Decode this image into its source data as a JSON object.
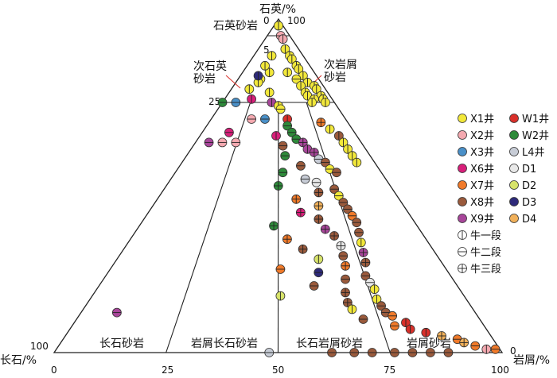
{
  "axes": {
    "top": "石英/%",
    "left": "长石/%",
    "right": "岩屑/%"
  },
  "ticks": {
    "apex_top_0": "0",
    "apex_top_100": "100",
    "quartz_5": "5",
    "quartz_25": "25",
    "feldspar_100": "100",
    "lithic_0": "0",
    "base": [
      "0",
      "25",
      "50",
      "75",
      "100"
    ]
  },
  "fields": {
    "quartz_sandstone": "石英砂岩",
    "sub_arkose": "次石英\n砂岩",
    "sub_litharenite": "次岩屑\n砂岩",
    "arkose": "长石砂岩",
    "lithic_arkose": "岩屑长石砂岩",
    "feldspathic_litharenite": "长石岩屑砂岩",
    "litharenite": "岩屑砂岩"
  },
  "legend": {
    "wells": [
      {
        "label": "X1井",
        "color": "#f2e83a"
      },
      {
        "label": "X2井",
        "color": "#f4a9b0"
      },
      {
        "label": "X3井",
        "color": "#4a90c8"
      },
      {
        "label": "X6井",
        "color": "#d81f7a"
      },
      {
        "label": "X7井",
        "color": "#f07a2a"
      },
      {
        "label": "X8井",
        "color": "#9a5a3c"
      },
      {
        "label": "X9井",
        "color": "#a8469a"
      },
      {
        "label": "W1井",
        "color": "#d9302a"
      },
      {
        "label": "W2井",
        "color": "#2e8a3a"
      },
      {
        "label": "L4井",
        "color": "#c7ccd6"
      },
      {
        "label": "D1",
        "color": "#e8e8e8"
      },
      {
        "label": "D2",
        "color": "#d7e36a"
      },
      {
        "label": "D3",
        "color": "#2e2a7a"
      },
      {
        "label": "D4",
        "color": "#f0b05a"
      }
    ],
    "members": [
      {
        "label": "牛一段",
        "marker": "vertical"
      },
      {
        "label": "牛二段",
        "marker": "horizontal"
      },
      {
        "label": "牛三段",
        "marker": "cross"
      }
    ]
  },
  "colors": {
    "X1": "#f2e83a",
    "X2": "#f4a9b0",
    "X3": "#4a90c8",
    "X6": "#d81f7a",
    "X7": "#f07a2a",
    "X8": "#9a5a3c",
    "X9": "#a8469a",
    "W1": "#d9302a",
    "W2": "#2e8a3a",
    "L4": "#c7ccd6",
    "D1": "#e8e8e8",
    "D2": "#d7e36a",
    "D3": "#2e2a7a",
    "D4": "#f0b05a"
  },
  "chart_data": {
    "type": "scatter",
    "plot": "ternary",
    "components": {
      "top": "石英",
      "left": "长石",
      "right": "岩屑"
    },
    "boundaries": {
      "quartz": [
        75,
        95
      ],
      "lithic_to_feldspar_ratio": [
        0.333,
        1,
        3
      ]
    },
    "points": [
      {
        "q": 98,
        "l": 1,
        "well": "X1",
        "m": "v"
      },
      {
        "q": 98,
        "l": 1,
        "well": "X1",
        "m": "v"
      },
      {
        "q": 95,
        "l": 3,
        "well": "X2",
        "m": "h"
      },
      {
        "q": 94,
        "l": 4,
        "well": "X2",
        "m": "v"
      },
      {
        "q": 91,
        "l": 6,
        "well": "X1",
        "m": "v"
      },
      {
        "q": 89,
        "l": 8,
        "well": "X1",
        "m": "v"
      },
      {
        "q": 88,
        "l": 9,
        "well": "X1",
        "m": "v"
      },
      {
        "q": 86,
        "l": 11,
        "well": "X1",
        "m": "v"
      },
      {
        "q": 85,
        "l": 12,
        "well": "X1",
        "m": "v"
      },
      {
        "q": 84,
        "l": 10,
        "well": "X1",
        "m": "v"
      },
      {
        "q": 83,
        "l": 14,
        "well": "X1",
        "m": "v"
      },
      {
        "q": 82,
        "l": 13,
        "well": "X1",
        "m": "h"
      },
      {
        "q": 81,
        "l": 16,
        "well": "X1",
        "m": "v"
      },
      {
        "q": 80,
        "l": 15,
        "well": "X1",
        "m": "v"
      },
      {
        "q": 80,
        "l": 18,
        "well": "X1",
        "m": "v"
      },
      {
        "q": 79,
        "l": 19,
        "well": "X1",
        "m": "v"
      },
      {
        "q": 78,
        "l": 17,
        "well": "X1",
        "m": "v"
      },
      {
        "q": 77,
        "l": 21,
        "well": "X1",
        "m": "v"
      },
      {
        "q": 77,
        "l": 18,
        "well": "X1",
        "m": "v"
      },
      {
        "q": 76,
        "l": 22,
        "well": "X1",
        "m": "v"
      },
      {
        "q": 76,
        "l": 20,
        "well": "X1",
        "m": "v"
      },
      {
        "q": 75,
        "l": 23,
        "well": "X1",
        "m": "v"
      },
      {
        "q": 75,
        "l": 20,
        "well": "X1",
        "m": "v"
      },
      {
        "q": 82,
        "l": 5,
        "well": "X1",
        "m": "v"
      },
      {
        "q": 84,
        "l": 6,
        "well": "X1",
        "m": "v"
      },
      {
        "q": 79,
        "l": 4,
        "well": "X1",
        "m": "v"
      },
      {
        "q": 78,
        "l": 9,
        "well": "X1",
        "m": "v"
      },
      {
        "q": 86,
        "l": 4,
        "well": "X1",
        "m": "v"
      },
      {
        "q": 89,
        "l": 4,
        "well": "X1",
        "m": "v"
      },
      {
        "q": 81,
        "l": 5,
        "well": "X1",
        "m": "v"
      },
      {
        "q": 83,
        "l": 4,
        "well": "D3",
        "m": "v"
      },
      {
        "q": 75,
        "l": 0,
        "well": "W2",
        "m": "h"
      },
      {
        "q": 75,
        "l": 3,
        "well": "X3",
        "m": "h"
      },
      {
        "q": 76,
        "l": 6,
        "well": "X6",
        "m": "v"
      },
      {
        "q": 75,
        "l": 11,
        "well": "X9",
        "m": "v"
      },
      {
        "q": 74,
        "l": 13,
        "well": "X1",
        "m": "v"
      },
      {
        "q": 73,
        "l": 14,
        "well": "X1",
        "m": "h"
      },
      {
        "q": 70,
        "l": 17,
        "well": "W1",
        "m": "v"
      },
      {
        "q": 70,
        "l": 12,
        "well": "X3",
        "m": "h"
      },
      {
        "q": 70,
        "l": 9,
        "well": "X2",
        "m": "h"
      },
      {
        "q": 66,
        "l": 6,
        "well": "X6",
        "m": "h"
      },
      {
        "q": 63,
        "l": 3,
        "well": "X9",
        "m": "h"
      },
      {
        "q": 63,
        "l": 6,
        "well": "X2",
        "m": "h"
      },
      {
        "q": 63,
        "l": 9,
        "well": "X2",
        "m": "h"
      },
      {
        "q": 69,
        "l": 25,
        "well": "X7",
        "m": "c"
      },
      {
        "q": 67,
        "l": 28,
        "well": "X1",
        "m": "v"
      },
      {
        "q": 65,
        "l": 31,
        "well": "X8",
        "m": "v"
      },
      {
        "q": 63,
        "l": 33,
        "well": "X1",
        "m": "v"
      },
      {
        "q": 61,
        "l": 35,
        "well": "X1",
        "m": "v"
      },
      {
        "q": 59,
        "l": 37,
        "well": "X1",
        "m": "v"
      },
      {
        "q": 57,
        "l": 39,
        "well": "X1",
        "m": "v"
      },
      {
        "q": 68,
        "l": 18,
        "well": "W2",
        "m": "h"
      },
      {
        "q": 66,
        "l": 20,
        "well": "W2",
        "m": "h"
      },
      {
        "q": 65,
        "l": 17,
        "well": "X6",
        "m": "v"
      },
      {
        "q": 64,
        "l": 22,
        "well": "W2",
        "m": "h"
      },
      {
        "q": 63,
        "l": 24,
        "well": "X9",
        "m": "c"
      },
      {
        "q": 62,
        "l": 20,
        "well": "X8",
        "m": "h"
      },
      {
        "q": 61,
        "l": 26,
        "well": "X9",
        "m": "v"
      },
      {
        "q": 60,
        "l": 28,
        "well": "X9",
        "m": "c"
      },
      {
        "q": 59,
        "l": 22,
        "well": "W2",
        "m": "h"
      },
      {
        "q": 58,
        "l": 30,
        "well": "L4",
        "m": "h"
      },
      {
        "q": 57,
        "l": 32,
        "well": "X8",
        "m": "h"
      },
      {
        "q": 56,
        "l": 27,
        "well": "X8",
        "m": "h"
      },
      {
        "q": 55,
        "l": 34,
        "well": "X1",
        "m": "h"
      },
      {
        "q": 54,
        "l": 24,
        "well": "W2",
        "m": "h"
      },
      {
        "q": 54,
        "l": 36,
        "well": "X8",
        "m": "h"
      },
      {
        "q": 52,
        "l": 30,
        "well": "L4",
        "m": "h"
      },
      {
        "q": 51,
        "l": 33,
        "well": "D1",
        "m": "h"
      },
      {
        "q": 50,
        "l": 25,
        "well": "W2",
        "m": "c"
      },
      {
        "q": 49,
        "l": 38,
        "well": "X8",
        "m": "h"
      },
      {
        "q": 48,
        "l": 35,
        "well": "X8",
        "m": "c"
      },
      {
        "q": 47,
        "l": 40,
        "well": "X1",
        "m": "h"
      },
      {
        "q": 46,
        "l": 31,
        "well": "X7",
        "m": "c"
      },
      {
        "q": 45,
        "l": 42,
        "well": "X8",
        "m": "h"
      },
      {
        "q": 44,
        "l": 37,
        "well": "D4",
        "m": "c"
      },
      {
        "q": 43,
        "l": 44,
        "well": "X8",
        "m": "h"
      },
      {
        "q": 42,
        "l": 34,
        "well": "X6",
        "m": "c"
      },
      {
        "q": 41,
        "l": 46,
        "well": "X7",
        "m": "h"
      },
      {
        "q": 40,
        "l": 39,
        "well": "X8",
        "m": "c"
      },
      {
        "q": 39,
        "l": 48,
        "well": "X8",
        "m": "h"
      },
      {
        "q": 38,
        "l": 30,
        "well": "W2",
        "m": "c"
      },
      {
        "q": 37,
        "l": 42,
        "well": "X9",
        "m": "c"
      },
      {
        "q": 36,
        "l": 50,
        "well": "X8",
        "m": "h"
      },
      {
        "q": 35,
        "l": 45,
        "well": "X8",
        "m": "c"
      },
      {
        "q": 34,
        "l": 35,
        "well": "X7",
        "m": "c"
      },
      {
        "q": 33,
        "l": 52,
        "well": "X1",
        "m": "v"
      },
      {
        "q": 32,
        "l": 48,
        "well": "D1",
        "m": "c"
      },
      {
        "q": 31,
        "l": 40,
        "well": "X8",
        "m": "c"
      },
      {
        "q": 30,
        "l": 54,
        "well": "X9",
        "m": "c"
      },
      {
        "q": 29,
        "l": 50,
        "well": "X8",
        "m": "h"
      },
      {
        "q": 28,
        "l": 45,
        "well": "D2",
        "m": "v"
      },
      {
        "q": 27,
        "l": 56,
        "well": "X8",
        "m": "c"
      },
      {
        "q": 26,
        "l": 52,
        "well": "X7",
        "m": "c"
      },
      {
        "q": 25,
        "l": 38,
        "well": "X7",
        "m": "h"
      },
      {
        "q": 24,
        "l": 47,
        "well": "D3",
        "m": "h"
      },
      {
        "q": 23,
        "l": 58,
        "well": "X8",
        "m": "h"
      },
      {
        "q": 22,
        "l": 54,
        "well": "X8",
        "m": "h"
      },
      {
        "q": 21,
        "l": 60,
        "well": "D1",
        "m": "h"
      },
      {
        "q": 20,
        "l": 48,
        "well": "X8",
        "m": "h"
      },
      {
        "q": 19,
        "l": 62,
        "well": "X1",
        "m": "v"
      },
      {
        "q": 18,
        "l": 56,
        "well": "X8",
        "m": "c"
      },
      {
        "q": 17,
        "l": 42,
        "well": "D2",
        "m": "v"
      },
      {
        "q": 16,
        "l": 64,
        "well": "X1",
        "m": "v"
      },
      {
        "q": 15,
        "l": 58,
        "well": "X8",
        "m": "c"
      },
      {
        "q": 14,
        "l": 66,
        "well": "X8",
        "m": "h"
      },
      {
        "q": 13,
        "l": 60,
        "well": "X1",
        "m": "v"
      },
      {
        "q": 12,
        "l": 68,
        "well": "X8",
        "m": "h"
      },
      {
        "q": 11,
        "l": 70,
        "well": "X7",
        "m": "h"
      },
      {
        "q": 10,
        "l": 64,
        "well": "X8",
        "m": "h"
      },
      {
        "q": 9,
        "l": 74,
        "well": "W1",
        "m": "v"
      },
      {
        "q": 8,
        "l": 72,
        "well": "X7",
        "m": "h"
      },
      {
        "q": 7,
        "l": 76,
        "well": "W1",
        "m": "v"
      },
      {
        "q": 6,
        "l": 80,
        "well": "W1",
        "m": "v"
      },
      {
        "q": 5,
        "l": 84,
        "well": "D4",
        "m": "c"
      },
      {
        "q": 4,
        "l": 88,
        "well": "X7",
        "m": "h"
      },
      {
        "q": 3,
        "l": 90,
        "well": "D4",
        "m": "c"
      },
      {
        "q": 2,
        "l": 93,
        "well": "X7",
        "m": "h"
      },
      {
        "q": 1,
        "l": 96,
        "well": "X2",
        "m": "v"
      },
      {
        "q": 1,
        "l": 98,
        "well": "X7",
        "m": "h"
      },
      {
        "q": 12,
        "l": 8,
        "well": "X9",
        "m": "h"
      },
      {
        "q": 0,
        "l": 48,
        "well": "L4",
        "m": "h"
      },
      {
        "q": 0,
        "l": 62,
        "well": "X8",
        "m": "h"
      },
      {
        "q": 0,
        "l": 67,
        "well": "X8",
        "m": "h"
      },
      {
        "q": 0,
        "l": 71,
        "well": "X8",
        "m": "h"
      },
      {
        "q": 0,
        "l": 76,
        "well": "X8",
        "m": "h"
      },
      {
        "q": 0,
        "l": 80,
        "well": "X8",
        "m": "h"
      },
      {
        "q": 0,
        "l": 84,
        "well": "X8",
        "m": "h"
      },
      {
        "q": 0,
        "l": 88,
        "well": "X8",
        "m": "h"
      }
    ]
  }
}
